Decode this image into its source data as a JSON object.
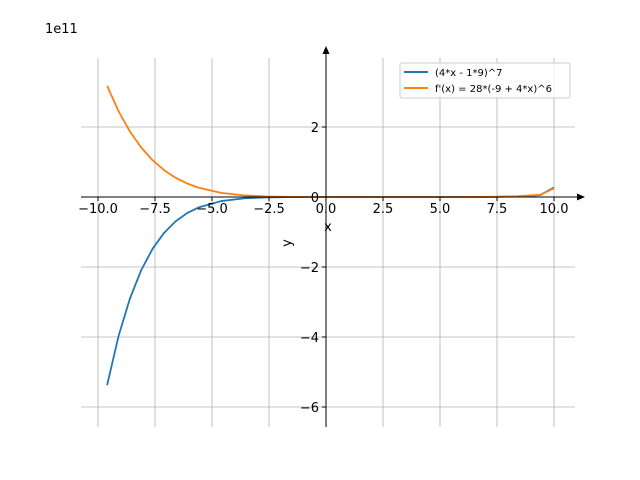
{
  "chart_data": {
    "type": "line",
    "title": "",
    "xlabel": "x",
    "ylabel": "y",
    "y_offset_label": "1e11",
    "xlim": [
      -10.75,
      11.36
    ],
    "ylim": [
      -6.57,
      4.29
    ],
    "grid": true,
    "legend_position": "top-right",
    "x_ticks": [
      -10,
      -7.5,
      -5,
      -2.5,
      0,
      2.5,
      5,
      7.5,
      10
    ],
    "x_tick_labels": [
      "−10.0",
      "−7.5",
      "−5.0",
      "−2.5",
      "0.0",
      "2.5",
      "5.0",
      "7.5",
      "10.0"
    ],
    "y_ticks": [
      -6,
      -4,
      -2,
      0,
      2
    ],
    "y_tick_labels": [
      "−6",
      "−4",
      "−2",
      "0",
      "2"
    ],
    "x": [
      -9.6,
      -9.1,
      -8.6,
      -8.1,
      -7.6,
      -7.1,
      -6.6,
      -6.1,
      -5.6,
      -4.6,
      -3.6,
      -2.6,
      -1.6,
      -0.6,
      0.4,
      1.4,
      2.4,
      3.4,
      4.4,
      5.4,
      6.4,
      7.4,
      8.4,
      9.4,
      10
    ],
    "series": [
      {
        "name": "(4*x - 1*9)^7",
        "color": "#1f77b4",
        "values": [
          -5.376,
          -3.976,
          -2.9,
          -2.084,
          -1.474,
          -1.024,
          -0.697,
          -0.464,
          -0.301,
          -0.116,
          -0.0384,
          -0.0103,
          -0.0021,
          -0.00025,
          -1e-05,
          0,
          0,
          0,
          0,
          3e-05,
          0.0005,
          0.0035,
          0.0157,
          0.0545,
          0.275
        ]
      },
      {
        "name": "f'(x) = 28*(-9 + 4*x)^6",
        "color": "#ff7f0e",
        "values": [
          3.176,
          2.452,
          1.871,
          1.41,
          1.047,
          0.766,
          0.551,
          0.389,
          0.268,
          0.1185,
          0.046,
          0.0149,
          0.0037,
          0.0006,
          4e-05,
          0,
          0,
          0,
          0,
          0.0001,
          0.0011,
          0.0059,
          0.0214,
          0.062,
          0.2485
        ]
      }
    ]
  }
}
